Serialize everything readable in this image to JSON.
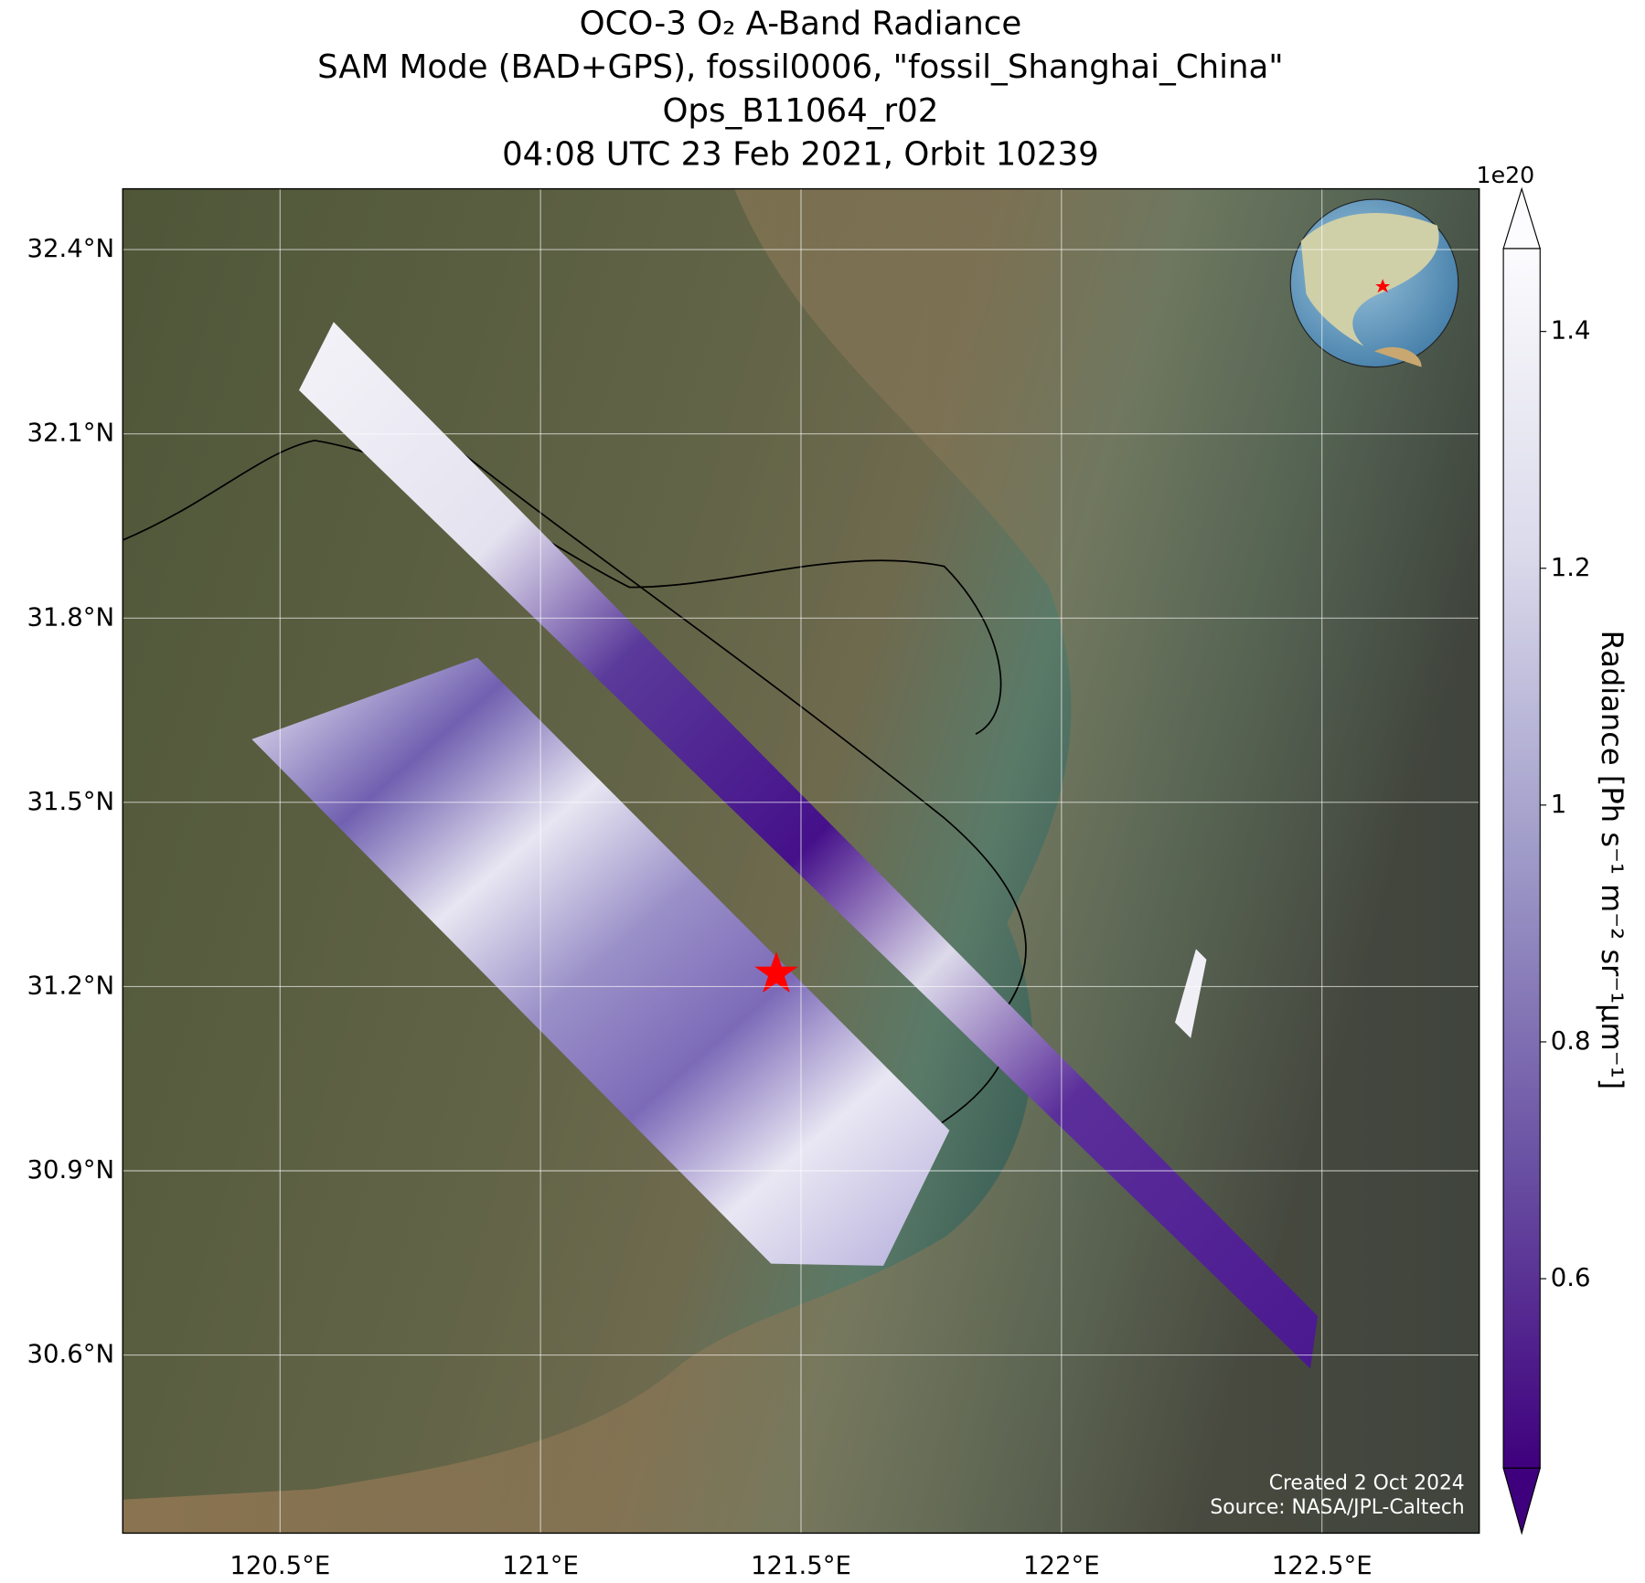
{
  "title_lines": [
    "OCO-3 O₂ A-Band Radiance",
    "SAM Mode (BAD+GPS), fossil0006, \"fossil_Shanghai_China\"",
    "Ops_B11064_r02",
    "04:08 UTC 23 Feb 2021, Orbit 10239"
  ],
  "map": {
    "xlim": [
      120.198,
      122.802
    ],
    "ylim": [
      30.31,
      32.499
    ],
    "xticks": [
      {
        "value": 120.5,
        "label": "120.5°E"
      },
      {
        "value": 121,
        "label": "121°E"
      },
      {
        "value": 121.5,
        "label": "121.5°E"
      },
      {
        "value": 122,
        "label": "122°E"
      },
      {
        "value": 122.5,
        "label": "122.5°E"
      }
    ],
    "yticks": [
      {
        "value": 30.6,
        "label": "30.6°N"
      },
      {
        "value": 30.9,
        "label": "30.9°N"
      },
      {
        "value": 31.2,
        "label": "31.2°N"
      },
      {
        "value": 31.5,
        "label": "31.5°N"
      },
      {
        "value": 31.8,
        "label": "31.8°N"
      },
      {
        "value": 32.1,
        "label": "32.1°N"
      },
      {
        "value": 32.4,
        "label": "32.4°N"
      }
    ],
    "grid": true
  },
  "colorbar": {
    "label": "Radiance [Ph s⁻¹ m⁻² sr⁻¹μm⁻¹]",
    "offset": "1e20",
    "lim": [
      0.44,
      1.47
    ],
    "ticks": [
      0.6,
      0.8,
      1.0,
      1.2,
      1.4
    ],
    "colors": [
      "#3f007d",
      "#6a51a3",
      "#9e9ac8",
      "#dadaeb",
      "#fcfbfd"
    ]
  },
  "credits": [
    "Created 2 Oct 2024",
    "Source: NASA/JPL-Caltech"
  ]
}
